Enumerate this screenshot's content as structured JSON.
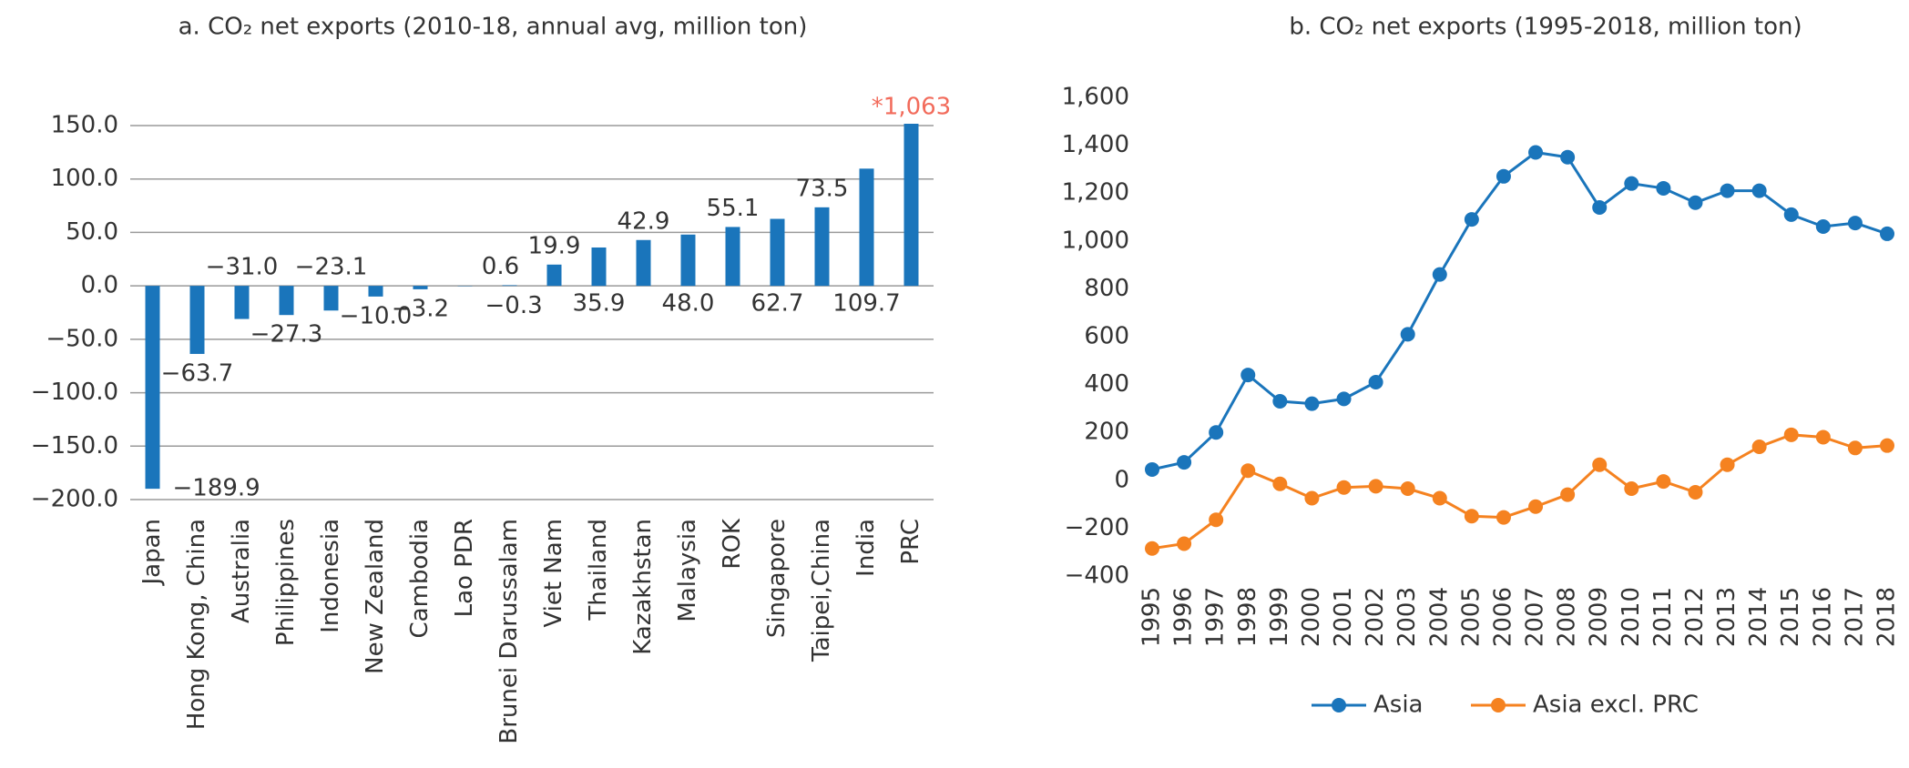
{
  "chart_data": [
    {
      "type": "bar",
      "title": "a. CO₂ net exports (2010-18, annual avg, million ton)",
      "categories": [
        "Japan",
        "Hong Kong, China",
        "Australia",
        "Philippines",
        "Indonesia",
        "New Zealand",
        "Cambodia",
        "Lao PDR",
        "Brunei Darussalam",
        "Viet Nam",
        "Thailand",
        "Kazakhstan",
        "Malaysia",
        "ROK",
        "Singapore",
        "Taipei,China",
        "India",
        "PRC"
      ],
      "values": [
        -189.9,
        -63.7,
        -31.0,
        -27.3,
        -23.1,
        -10.0,
        -3.2,
        -0.3,
        0.6,
        19.9,
        35.9,
        42.9,
        48.0,
        55.1,
        62.7,
        73.5,
        109.7,
        1063
      ],
      "value_labels": [
        "−189.9",
        "−63.7",
        "−31.0",
        "−27.3",
        "−23.1",
        "−10.0",
        "−3.2",
        "−0.3",
        "0.6",
        "19.9",
        "35.9",
        "42.9",
        "48.0",
        "55.1",
        "62.7",
        "73.5",
        "109.7",
        "*1,063"
      ],
      "value_label_colors": [
        "#333333",
        "#333333",
        "#333333",
        "#333333",
        "#333333",
        "#333333",
        "#333333",
        "#333333",
        "#333333",
        "#333333",
        "#333333",
        "#333333",
        "#333333",
        "#333333",
        "#333333",
        "#333333",
        "#333333",
        "#f26b5b"
      ],
      "color": "#1a75bb",
      "ylim": [
        -200,
        150
      ],
      "yticks": [
        {
          "value": -200,
          "label": "−200.0"
        },
        {
          "value": -150,
          "label": "−150.0"
        },
        {
          "value": -100,
          "label": "−100.0"
        },
        {
          "value": -50,
          "label": "−50.0"
        },
        {
          "value": 0,
          "label": "0.0"
        },
        {
          "value": 50,
          "label": "50.0"
        },
        {
          "value": 100,
          "label": "100.0"
        },
        {
          "value": 150,
          "label": "150.0"
        }
      ],
      "grid": true
    },
    {
      "type": "line",
      "title": "b. CO₂ net exports (1995-2018, million ton)",
      "categories": [
        "1995",
        "1996",
        "1997",
        "1998",
        "1999",
        "2000",
        "2001",
        "2002",
        "2003",
        "2004",
        "2005",
        "2006",
        "2007",
        "2008",
        "2009",
        "2010",
        "2011",
        "2012",
        "2013",
        "2014",
        "2015",
        "2016",
        "2017",
        "2018"
      ],
      "series": [
        {
          "name": "Asia",
          "color": "#1a75bb",
          "values": [
            45,
            75,
            200,
            440,
            330,
            320,
            340,
            410,
            610,
            860,
            1090,
            1270,
            1370,
            1350,
            1140,
            1240,
            1220,
            1160,
            1210,
            1210,
            1110,
            1060,
            1075,
            1030
          ]
        },
        {
          "name": "Asia excl. PRC",
          "color": "#f58220",
          "values": [
            -285,
            -265,
            -165,
            40,
            -15,
            -75,
            -30,
            -25,
            -35,
            -75,
            -150,
            -155,
            -110,
            -60,
            65,
            -35,
            -5,
            -50,
            65,
            140,
            190,
            180,
            135,
            145
          ]
        }
      ],
      "ylim": [
        -400,
        1600
      ],
      "yticks": [
        {
          "value": -400,
          "label": "−400"
        },
        {
          "value": -200,
          "label": "−200"
        },
        0,
        200,
        400,
        600,
        800,
        {
          "value": 1000,
          "label": "1,000"
        },
        {
          "value": 1200,
          "label": "1,200"
        },
        {
          "value": 1400,
          "label": "1,400"
        },
        {
          "value": 1600,
          "label": "1,600"
        }
      ],
      "grid": false
    }
  ]
}
